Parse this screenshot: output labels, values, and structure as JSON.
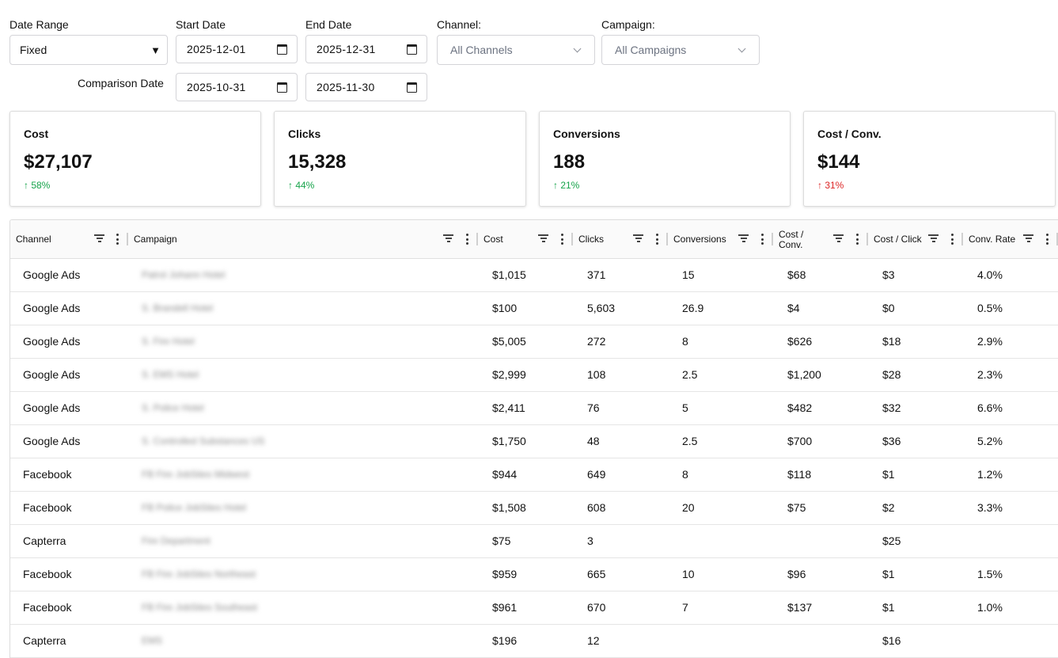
{
  "filters": {
    "date_range_label": "Date Range",
    "date_range_value": "Fixed",
    "start_date_label": "Start Date",
    "start_date_value": "2025-12-01",
    "end_date_label": "End Date",
    "end_date_value": "2025-12-31",
    "comparison_label": "Comparison Date",
    "comparison_start_value": "2025-10-31",
    "comparison_end_value": "2025-11-30",
    "channel_label": "Channel:",
    "channel_value": "All Channels",
    "campaign_label": "Campaign:",
    "campaign_value": "All Campaigns"
  },
  "cards": [
    {
      "title": "Cost",
      "value": "$27,107",
      "delta": "↑ 58%",
      "delta_color": "#16a34a"
    },
    {
      "title": "Clicks",
      "value": "15,328",
      "delta": "↑ 44%",
      "delta_color": "#16a34a"
    },
    {
      "title": "Conversions",
      "value": "188",
      "delta": "↑ 21%",
      "delta_color": "#16a34a"
    },
    {
      "title": "Cost / Conv.",
      "value": "$144",
      "delta": "↑ 31%",
      "delta_color": "#dc2626"
    }
  ],
  "table": {
    "columns": [
      "Channel",
      "Campaign",
      "Cost",
      "Clicks",
      "Conversions",
      "Cost / Conv.",
      "Cost / Click",
      "Conv. Rate"
    ],
    "rows": [
      [
        "Google Ads",
        "Patrol Johann Hotel",
        "$1,015",
        "371",
        "15",
        "$68",
        "$3",
        "4.0%"
      ],
      [
        "Google Ads",
        "S. Brandell Hotel",
        "$100",
        "5,603",
        "26.9",
        "$4",
        "$0",
        "0.5%"
      ],
      [
        "Google Ads",
        "S. Fire Hotel",
        "$5,005",
        "272",
        "8",
        "$626",
        "$18",
        "2.9%"
      ],
      [
        "Google Ads",
        "S. EMS Hotel",
        "$2,999",
        "108",
        "2.5",
        "$1,200",
        "$28",
        "2.3%"
      ],
      [
        "Google Ads",
        "S. Police Hotel",
        "$2,411",
        "76",
        "5",
        "$482",
        "$32",
        "6.6%"
      ],
      [
        "Google Ads",
        "S. Controlled Substances US",
        "$1,750",
        "48",
        "2.5",
        "$700",
        "$36",
        "5.2%"
      ],
      [
        "Facebook",
        "FB Fire JobSites Midwest",
        "$944",
        "649",
        "8",
        "$118",
        "$1",
        "1.2%"
      ],
      [
        "Facebook",
        "FB Police JobSites Hotel",
        "$1,508",
        "608",
        "20",
        "$75",
        "$2",
        "3.3%"
      ],
      [
        "Capterra",
        "Fire Department",
        "$75",
        "3",
        "",
        "",
        "$25",
        ""
      ],
      [
        "Facebook",
        "FB Fire JobSites Northeast",
        "$959",
        "665",
        "10",
        "$96",
        "$1",
        "1.5%"
      ],
      [
        "Facebook",
        "FB Fire JobSites Southeast",
        "$961",
        "670",
        "7",
        "$137",
        "$1",
        "1.0%"
      ],
      [
        "Capterra",
        "EMS",
        "$196",
        "12",
        "",
        "",
        "$16",
        ""
      ]
    ]
  }
}
